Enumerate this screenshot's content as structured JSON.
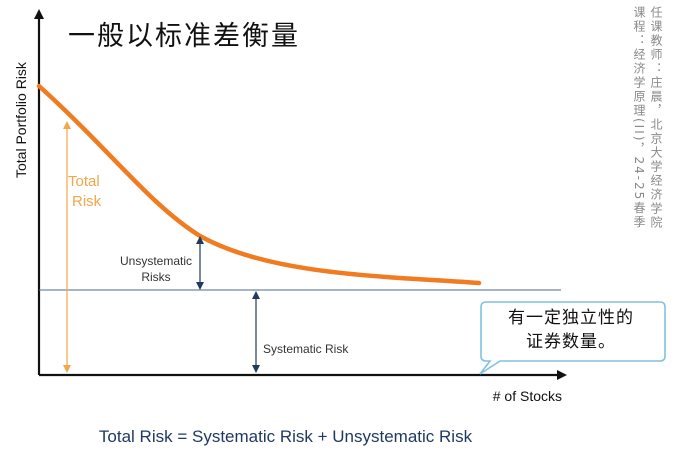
{
  "title": "一般以标准差衡量",
  "credit": {
    "line1": "任课教师：庄晨，北京大学经济学院",
    "line2": "课程：经济学原理(II)，24-25春季"
  },
  "axes": {
    "ylabel": "Total Portfolio Risk",
    "xlabel": "# of Stocks"
  },
  "labels": {
    "total_risk_line1": "Total",
    "total_risk_line2": "Risk",
    "unsystematic_line1": "Unsystematic",
    "unsystematic_line2": "Risks",
    "systematic": "Systematic Risk"
  },
  "callout": {
    "line1": "有一定独立性的",
    "line2": "证券数量。"
  },
  "formula": "Total Risk = Systematic Risk + Unsystematic Risk",
  "colors": {
    "curve": "#f07b20",
    "total_risk": "#f4a64b",
    "systematic_line": "#4a6b8a",
    "arrow": "#1f3a5c",
    "callout_border": "#7fc2e0",
    "formula": "#1f3a60"
  }
}
